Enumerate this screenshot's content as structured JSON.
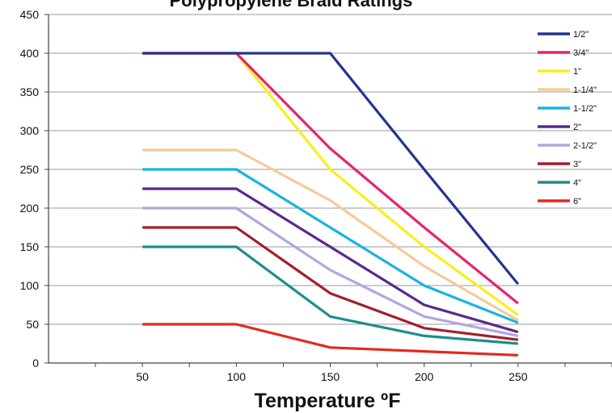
{
  "chart_data": {
    "type": "line",
    "title": "Polypropylene Braid Ratings",
    "xlabel": "Temperature ºF",
    "ylabel": "",
    "x": [
      50,
      100,
      150,
      200,
      250
    ],
    "xlim": [
      0,
      300
    ],
    "ylim": [
      0,
      450
    ],
    "xticks": [
      "50",
      "100",
      "150",
      "200",
      "250"
    ],
    "yticks": [
      "0",
      "50",
      "100",
      "150",
      "200",
      "250",
      "300",
      "350",
      "400",
      "450"
    ],
    "grid": "horizontal",
    "legend": "right",
    "series": [
      {
        "name": "1/2\"",
        "color": "#23348e",
        "values": [
          400,
          400,
          400,
          250,
          102
        ]
      },
      {
        "name": "3/4\"",
        "color": "#e6246f",
        "values": [
          400,
          400,
          277,
          175,
          77
        ]
      },
      {
        "name": "1\"",
        "color": "#f7ef1c",
        "values": [
          400,
          400,
          250,
          150,
          62
        ]
      },
      {
        "name": "1-1/4\"",
        "color": "#f6c99a",
        "values": [
          275,
          275,
          210,
          125,
          55
        ]
      },
      {
        "name": "1-1/2\"",
        "color": "#18b3e2",
        "values": [
          250,
          250,
          175,
          100,
          52
        ]
      },
      {
        "name": "2\"",
        "color": "#5a2a8c",
        "values": [
          225,
          225,
          150,
          75,
          40
        ]
      },
      {
        "name": "2-1/2\"",
        "color": "#b3a6df",
        "values": [
          200,
          200,
          120,
          60,
          35
        ]
      },
      {
        "name": "3\"",
        "color": "#a11f2c",
        "values": [
          175,
          175,
          90,
          45,
          30
        ]
      },
      {
        "name": "4\"",
        "color": "#1f8c8e",
        "values": [
          150,
          150,
          60,
          35,
          25
        ]
      },
      {
        "name": "6\"",
        "color": "#e3281e",
        "values": [
          50,
          50,
          20,
          15,
          10
        ]
      }
    ]
  }
}
